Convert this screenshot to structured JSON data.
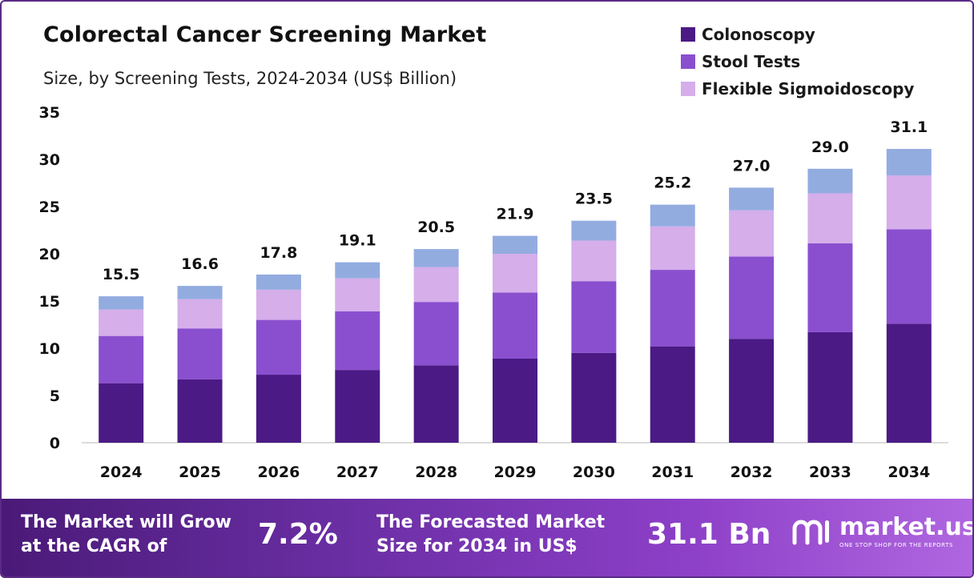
{
  "title": "Colorectal Cancer Screening Market",
  "subtitle": "Size, by Screening Tests, 2024-2034 (US$ Billion)",
  "legend": [
    {
      "label": "Colonoscopy",
      "color": "#4b1a85"
    },
    {
      "label": "Stool Tests",
      "color": "#8a4fcf"
    },
    {
      "label": "Flexible Sigmoidoscopy",
      "color": "#d5aeea"
    }
  ],
  "chart_data": {
    "type": "bar",
    "stacked": true,
    "categories": [
      "2024",
      "2025",
      "2026",
      "2027",
      "2028",
      "2029",
      "2030",
      "2031",
      "2032",
      "2033",
      "2034"
    ],
    "series": [
      {
        "name": "Colonoscopy",
        "color": "#4b1a85",
        "values": [
          6.3,
          6.7,
          7.2,
          7.7,
          8.2,
          8.9,
          9.5,
          10.2,
          11.0,
          11.7,
          12.6
        ]
      },
      {
        "name": "Stool Tests",
        "color": "#8a4fcf",
        "values": [
          5.0,
          5.4,
          5.8,
          6.2,
          6.7,
          7.0,
          7.6,
          8.1,
          8.7,
          9.4,
          10.0
        ]
      },
      {
        "name": "Flexible Sigmoidoscopy",
        "color": "#d5aeea",
        "values": [
          2.8,
          3.1,
          3.2,
          3.5,
          3.7,
          4.1,
          4.3,
          4.6,
          4.9,
          5.3,
          5.7
        ]
      },
      {
        "values": [
          1.4,
          1.4,
          1.6,
          1.7,
          1.9,
          1.9,
          2.1,
          2.3,
          2.4,
          2.6,
          2.8
        ],
        "color": "#93ace0"
      }
    ],
    "totals": [
      "15.5",
      "16.6",
      "17.8",
      "19.1",
      "20.5",
      "21.9",
      "23.5",
      "25.2",
      "27.0",
      "29.0",
      "31.1"
    ],
    "totals_values": [
      15.5,
      16.6,
      17.8,
      19.1,
      20.5,
      21.9,
      23.5,
      25.2,
      27.0,
      29.0,
      31.1
    ],
    "yticks": [
      "0",
      "5",
      "10",
      "15",
      "20",
      "25",
      "30",
      "35"
    ],
    "ylim": [
      0,
      35
    ],
    "grid": false,
    "legend_position": "top-right"
  },
  "footer": {
    "cagr_line1": "The Market will Grow",
    "cagr_line2": "at the CAGR of",
    "cagr_value": "7.2%",
    "forecast_line1": "The Forecasted Market",
    "forecast_line2": "Size for 2034 in US$",
    "forecast_value": "31.1 Bn",
    "logo_text": "market.us",
    "logo_tagline": "ONE STOP SHOP FOR THE REPORTS"
  }
}
